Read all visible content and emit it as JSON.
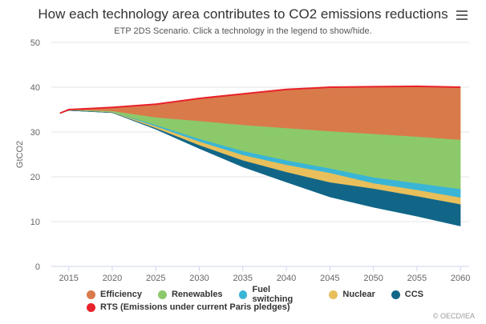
{
  "title": "How each technology area contributes to CO2 emissions reductions",
  "subtitle": "ETP 2DS Scenario. Click a technology in the legend to show/hide.",
  "credits": "© OECD/IEA",
  "menu_icon": "hamburger-menu-icon",
  "chart_data": {
    "type": "area",
    "ylabel": "GtCO2",
    "ylim": [
      0,
      50
    ],
    "yticks": [
      0,
      10,
      20,
      30,
      40,
      50
    ],
    "xlim": [
      2013,
      2061
    ],
    "xticks": [
      2015,
      2020,
      2025,
      2030,
      2035,
      2040,
      2045,
      2050,
      2055,
      2060
    ],
    "x": [
      2014,
      2015,
      2020,
      2025,
      2030,
      2035,
      2040,
      2045,
      2050,
      2055,
      2060
    ],
    "bands": [
      {
        "name": "Efficiency",
        "color": "#d97a4b",
        "upper": [
          34.2,
          35.0,
          35.5,
          36.2,
          37.5,
          38.5,
          39.5,
          40.0,
          40.1,
          40.2,
          40.0
        ],
        "lower": [
          34.2,
          34.9,
          34.6,
          33.2,
          32.4,
          31.5,
          30.8,
          30.1,
          29.5,
          28.9,
          28.2
        ]
      },
      {
        "name": "Renewables",
        "color": "#8cc96a",
        "upper": [
          34.2,
          34.9,
          34.6,
          33.2,
          32.4,
          31.5,
          30.8,
          30.1,
          29.5,
          28.9,
          28.2
        ],
        "lower": [
          34.2,
          34.8,
          34.4,
          31.5,
          28.4,
          25.7,
          23.6,
          21.8,
          19.8,
          18.5,
          17.2
        ]
      },
      {
        "name": "Fuel switching",
        "color": "#3ab5d6",
        "upper": [
          34.2,
          34.8,
          34.4,
          31.5,
          28.4,
          25.7,
          23.6,
          21.8,
          19.8,
          18.5,
          17.2
        ],
        "lower": [
          34.2,
          34.8,
          34.4,
          31.2,
          27.8,
          24.8,
          22.6,
          20.8,
          18.5,
          17.0,
          15.3
        ]
      },
      {
        "name": "Nuclear",
        "color": "#e8bf5a",
        "upper": [
          34.2,
          34.8,
          34.4,
          31.2,
          27.8,
          24.8,
          22.6,
          20.8,
          18.5,
          17.0,
          15.3
        ],
        "lower": [
          34.2,
          34.8,
          34.3,
          30.8,
          27.0,
          23.6,
          21.0,
          18.7,
          17.3,
          15.6,
          13.8
        ]
      },
      {
        "name": "CCS",
        "color": "#116688",
        "upper": [
          34.2,
          34.8,
          34.3,
          30.8,
          27.0,
          23.6,
          21.0,
          18.7,
          17.3,
          15.6,
          13.8
        ],
        "lower": [
          34.2,
          34.8,
          34.3,
          30.6,
          26.3,
          22.2,
          18.8,
          15.5,
          13.2,
          11.2,
          9.0
        ]
      }
    ],
    "series": [
      {
        "name": "RTS (Emissions under current Paris pledges)",
        "color": "#e8222a",
        "values": [
          34.2,
          35.0,
          35.5,
          36.2,
          37.5,
          38.5,
          39.5,
          40.0,
          40.1,
          40.2,
          40.0
        ]
      }
    ]
  },
  "legend": {
    "row1": [
      {
        "label": "Efficiency",
        "color": "#d97a4b"
      },
      {
        "label": "Renewables",
        "color": "#8cc96a"
      },
      {
        "label": "Fuel switching",
        "color": "#3ab5d6"
      },
      {
        "label": "Nuclear",
        "color": "#e8bf5a"
      },
      {
        "label": "CCS",
        "color": "#116688"
      }
    ],
    "row2": [
      {
        "label": "RTS (Emissions under current Paris pledges)",
        "color": "#e8222a"
      }
    ]
  }
}
